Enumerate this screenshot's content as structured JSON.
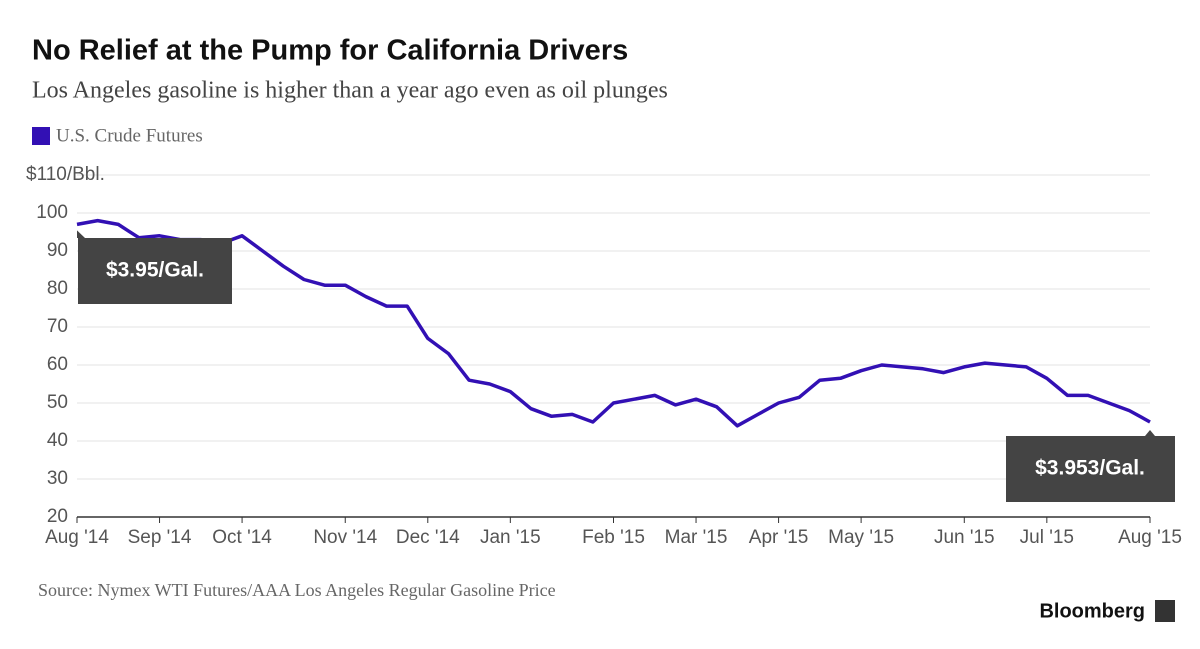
{
  "chart_data": {
    "type": "line",
    "title": "No Relief at the Pump for California Drivers",
    "subtitle": "Los Angeles gasoline is higher than a year ago even as oil plunges",
    "source": "Source: Nymex WTI Futures/AAA Los Angeles Regular Gasoline Price",
    "brand": "Bloomberg",
    "annotations": [
      "$3.95/Gal.",
      "$3.953/Gal."
    ],
    "categories": [
      "Aug '14",
      null,
      null,
      null,
      "Sep '14",
      null,
      null,
      null,
      "Oct '14",
      null,
      null,
      null,
      null,
      "Nov '14",
      null,
      null,
      null,
      "Dec '14",
      null,
      null,
      null,
      "Jan '15",
      null,
      null,
      null,
      null,
      "Feb '15",
      null,
      null,
      null,
      "Mar '15",
      null,
      null,
      null,
      "Apr '15",
      null,
      null,
      null,
      "May '15",
      null,
      null,
      null,
      null,
      "Jun '15",
      null,
      null,
      null,
      "Jul '15",
      null,
      null,
      null,
      null,
      "Aug '15"
    ],
    "series": [
      {
        "name": "U.S. Crude Futures",
        "color": "#3210b4",
        "values": [
          97,
          98,
          97,
          93.5,
          94,
          93,
          93,
          92,
          94,
          90,
          86,
          82.5,
          81,
          81,
          78,
          75.5,
          75.5,
          67,
          63,
          56,
          55,
          53,
          48.5,
          46.5,
          47,
          45,
          50,
          51,
          52,
          49.5,
          51,
          49,
          44,
          47,
          50,
          51.5,
          56,
          56.5,
          58.5,
          60,
          59.5,
          59,
          58,
          59.5,
          60.5,
          60,
          59.5,
          56.5,
          52,
          52,
          50,
          48,
          45
        ]
      }
    ],
    "ylim": [
      20,
      110
    ],
    "yticks": [
      20,
      30,
      40,
      50,
      60,
      70,
      80,
      90,
      100,
      {
        "value": 110,
        "label": "$110/Bbl."
      }
    ],
    "grid": true
  }
}
